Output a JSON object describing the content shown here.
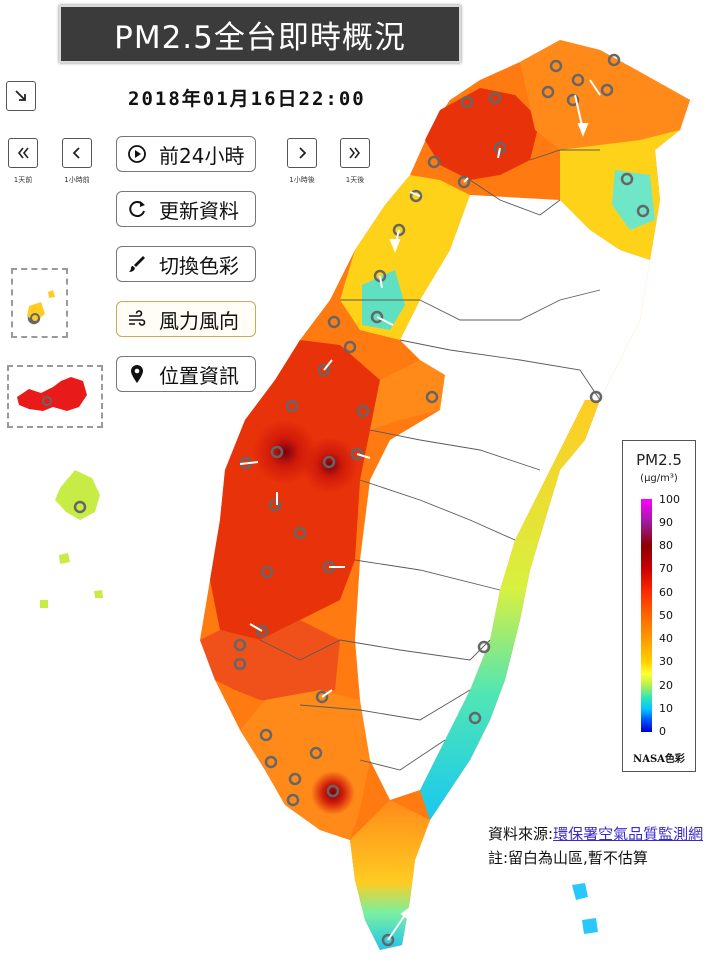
{
  "header": {
    "title": "PM2.5全台即時概況",
    "datetime": "2018年01月16日22:00"
  },
  "controls": {
    "expand_icon": "arrow-down-right-icon",
    "step_buttons": [
      {
        "icon": "double-chevron-left-icon",
        "caption": "1天前"
      },
      {
        "icon": "chevron-left-icon",
        "caption": "1小時前"
      },
      {
        "icon": "chevron-right-icon",
        "caption": "1小時後"
      },
      {
        "icon": "double-chevron-right-icon",
        "caption": "1天後"
      }
    ],
    "actions": [
      {
        "label": "前24小時",
        "icon": "play-circle-icon"
      },
      {
        "label": "更新資料",
        "icon": "refresh-icon"
      },
      {
        "label": "切換色彩",
        "icon": "paintbrush-icon"
      },
      {
        "label": "風力風向",
        "icon": "wind-icon",
        "active": true
      },
      {
        "label": "位置資訊",
        "icon": "map-pin-icon"
      }
    ]
  },
  "legend": {
    "title": "PM2.5",
    "unit": "(μg/m³)",
    "ticks": [
      "100",
      "90",
      "80",
      "70",
      "60",
      "50",
      "40",
      "30",
      "20",
      "10",
      "0"
    ],
    "caption": "NASA色彩",
    "gradient": [
      "#ff00ff",
      "#9e1a9e",
      "#8b0000",
      "#cc0000",
      "#ff2a00",
      "#ff6600",
      "#ff9900",
      "#ffd200",
      "#ffff33",
      "#b4f050",
      "#32e6b4",
      "#00c8ff",
      "#0050ff",
      "#0000cc"
    ]
  },
  "footer": {
    "source_prefix": "資料來源:",
    "source_link": "環保署空氣品質監測網",
    "note": "註:留白為山區,暫不估算"
  },
  "colors": {
    "high": "#cc1a00",
    "mid": "#ff6a00",
    "low": "#ffd21a",
    "clean": "#28c8e6",
    "mountain": "#ffffff",
    "border": "#4a4a4a"
  }
}
